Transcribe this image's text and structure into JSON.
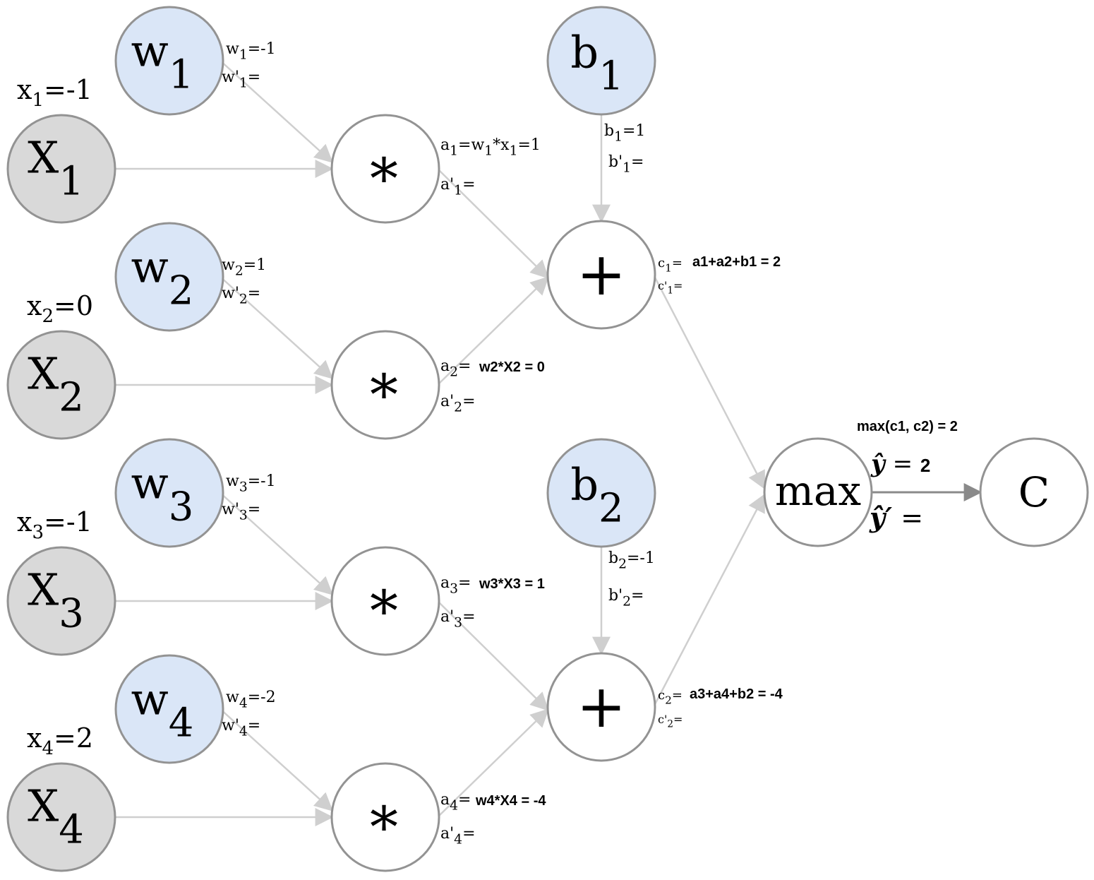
{
  "colors": {
    "input_fill": "#d9d9d9",
    "param_fill": "#dae6f7",
    "op_fill": "#ffffff",
    "node_stroke": "#939393",
    "edge_light": "#cfcfcf",
    "edge_dark": "#8a8a8a",
    "text": "#000000"
  },
  "inputs": [
    {
      "symbol": "X",
      "sub": "1",
      "label": "x",
      "label_sub": "1",
      "label_value": "=-1"
    },
    {
      "symbol": "X",
      "sub": "2",
      "label": "x",
      "label_sub": "2",
      "label_value": "=0"
    },
    {
      "symbol": "X",
      "sub": "3",
      "label": "x",
      "label_sub": "3",
      "label_value": "=-1"
    },
    {
      "symbol": "X",
      "sub": "4",
      "label": "x",
      "label_sub": "4",
      "label_value": "=2"
    }
  ],
  "weights": [
    {
      "symbol": "w",
      "sub": "1",
      "value_label": {
        "base": "w",
        "sub": "1",
        "rest": "=-1"
      },
      "grad_label": {
        "base": "w'",
        "sub": "1",
        "rest": "="
      }
    },
    {
      "symbol": "w",
      "sub": "2",
      "value_label": {
        "base": "w",
        "sub": "2",
        "rest": "=1"
      },
      "grad_label": {
        "base": "w'",
        "sub": "2",
        "rest": "="
      }
    },
    {
      "symbol": "w",
      "sub": "3",
      "value_label": {
        "base": "w",
        "sub": "3",
        "rest": "=-1"
      },
      "grad_label": {
        "base": "w'",
        "sub": "3",
        "rest": "="
      }
    },
    {
      "symbol": "w",
      "sub": "4",
      "value_label": {
        "base": "w",
        "sub": "4",
        "rest": "=-2"
      },
      "grad_label": {
        "base": "w'",
        "sub": "4",
        "rest": "="
      }
    }
  ],
  "multiplies": [
    {
      "symbol": "*",
      "value_label": {
        "parts": [
          [
            "a",
            "n"
          ],
          [
            "1",
            "s"
          ],
          [
            "=w",
            "n"
          ],
          [
            "1",
            "s"
          ],
          [
            "*x",
            "n"
          ],
          [
            "1",
            "s"
          ],
          [
            "=1",
            "n"
          ]
        ]
      },
      "bold_expr": "",
      "grad_label": {
        "base": "a'",
        "sub": "1",
        "rest": "="
      }
    },
    {
      "symbol": "*",
      "value_label": {
        "parts": [
          [
            "a",
            "n"
          ],
          [
            "2",
            "s"
          ],
          [
            "=",
            "n"
          ]
        ]
      },
      "bold_expr": "w2*X2 = 0",
      "grad_label": {
        "base": "a'",
        "sub": "2",
        "rest": "="
      }
    },
    {
      "symbol": "*",
      "value_label": {
        "parts": [
          [
            "a",
            "n"
          ],
          [
            "3",
            "s"
          ],
          [
            "=",
            "n"
          ]
        ]
      },
      "bold_expr": "w3*X3 = 1",
      "grad_label": {
        "base": "a'",
        "sub": "3",
        "rest": "="
      }
    },
    {
      "symbol": "*",
      "value_label": {
        "parts": [
          [
            "a",
            "n"
          ],
          [
            "4",
            "s"
          ],
          [
            "=",
            "n"
          ]
        ]
      },
      "bold_expr": "w4*X4 = -4",
      "grad_label": {
        "base": "a'",
        "sub": "4",
        "rest": "="
      }
    }
  ],
  "biases": [
    {
      "symbol": "b",
      "sub": "1",
      "value_label": {
        "base": "b",
        "sub": "1",
        "rest": "=1"
      },
      "grad_label": {
        "base": "b'",
        "sub": "1",
        "rest": "="
      }
    },
    {
      "symbol": "b",
      "sub": "2",
      "value_label": {
        "base": "b",
        "sub": "2",
        "rest": "=-1"
      },
      "grad_label": {
        "base": "b'",
        "sub": "2",
        "rest": "="
      }
    }
  ],
  "adds": [
    {
      "symbol": "+",
      "value_label": {
        "base": "c",
        "sub": "1",
        "rest": "="
      },
      "bold_expr": "a1+a2+b1 = 2",
      "grad_label": {
        "base": "c'",
        "sub": "1",
        "rest": "="
      }
    },
    {
      "symbol": "+",
      "value_label": {
        "base": "c",
        "sub": "2",
        "rest": "="
      },
      "bold_expr": "a3+a4+b2 = -4",
      "grad_label": {
        "base": "c'",
        "sub": "2",
        "rest": "="
      }
    }
  ],
  "max_node": {
    "symbol": "max",
    "expr": "max(c1, c2) = 2",
    "yhat_symbol": "ŷ",
    "yhat_eq": " = ",
    "yhat_value": "2",
    "yhat_grad_symbol": "ŷ′",
    "yhat_grad_eq": " ="
  },
  "cost_node": {
    "symbol": "C"
  }
}
